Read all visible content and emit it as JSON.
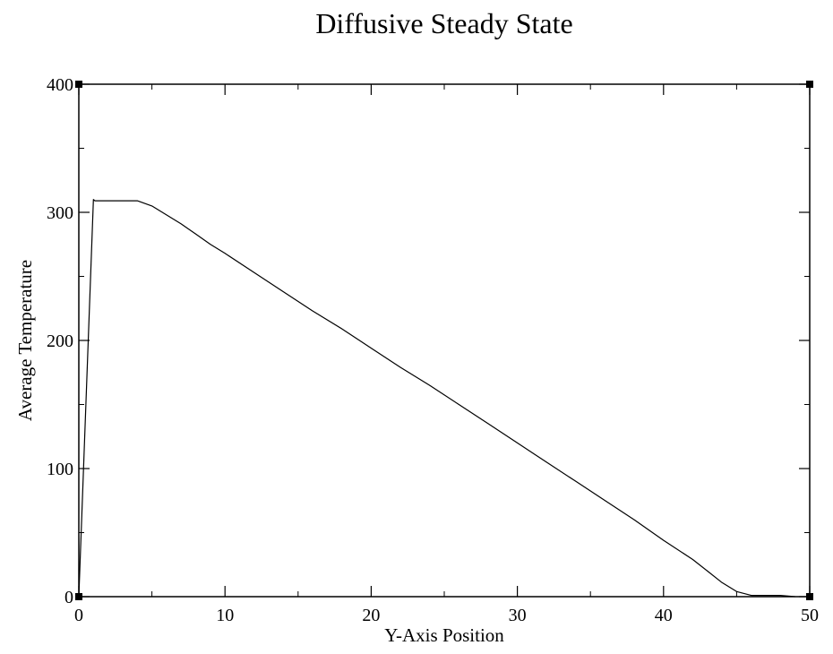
{
  "chart_data": {
    "type": "line",
    "title": "Diffusive Steady State",
    "xlabel": "Y-Axis Position",
    "ylabel": "Average Temperature",
    "xlim": [
      0,
      50
    ],
    "ylim": [
      0,
      400
    ],
    "x_major_ticks": [
      0,
      10,
      20,
      30,
      40,
      50
    ],
    "x_minor_ticks": [
      5,
      15,
      25,
      35,
      45
    ],
    "y_major_ticks": [
      0,
      100,
      200,
      300,
      400
    ],
    "y_minor_ticks": [
      50,
      150,
      250,
      350
    ],
    "grid": false,
    "legend": "none",
    "series": [
      {
        "color": "#000000",
        "x": [
          0,
          1,
          1.1,
          2,
          3,
          4,
          5,
          6,
          7,
          8,
          9,
          10,
          12,
          14,
          16,
          18,
          20,
          22,
          24,
          26,
          28,
          30,
          32,
          34,
          36,
          38,
          40,
          42,
          43,
          44,
          45,
          46,
          47,
          48,
          49
        ],
        "y": [
          0,
          310,
          309,
          309,
          309,
          309,
          305,
          298,
          291,
          283,
          275,
          268,
          253,
          238,
          223,
          209,
          194,
          179,
          165,
          150,
          135,
          120,
          105,
          90,
          75,
          60,
          44,
          29,
          20,
          11,
          4,
          1,
          1,
          1,
          0
        ]
      }
    ]
  }
}
